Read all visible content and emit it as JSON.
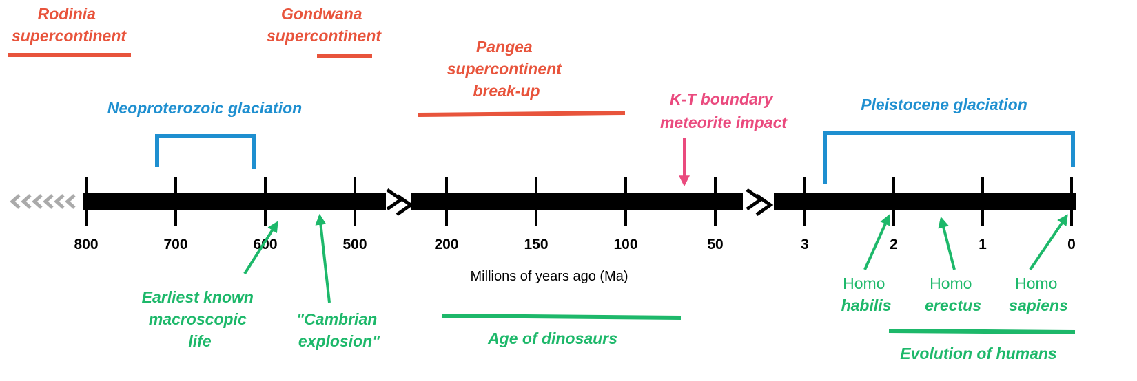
{
  "axis_label": "Millions of years ago (Ma)",
  "segments": [
    {
      "ticks": [
        800,
        700,
        600,
        500
      ]
    },
    {
      "ticks": [
        200,
        150,
        100,
        50
      ]
    },
    {
      "ticks": [
        3,
        2,
        1,
        0
      ]
    }
  ],
  "supercontinents": [
    {
      "label": [
        "Rodinia",
        "supercontinent"
      ]
    },
    {
      "label": [
        "Gondwana",
        "supercontinent"
      ]
    },
    {
      "label": [
        "Pangea",
        "supercontinent",
        "break-up"
      ]
    }
  ],
  "glaciations": [
    "Neoproterozoic glaciation",
    "Pleistocene glaciation"
  ],
  "impact": [
    "K-T boundary",
    "meteorite impact"
  ],
  "life_events": [
    [
      "Earliest known",
      "macroscopic",
      "life"
    ],
    [
      "\"Cambrian",
      "explosion\""
    ]
  ],
  "periods": [
    "Age of dinosaurs",
    "Evolution of humans"
  ],
  "humans": [
    [
      "Homo",
      "habilis"
    ],
    [
      "Homo",
      "erectus"
    ],
    [
      "Homo",
      "sapiens"
    ]
  ]
}
